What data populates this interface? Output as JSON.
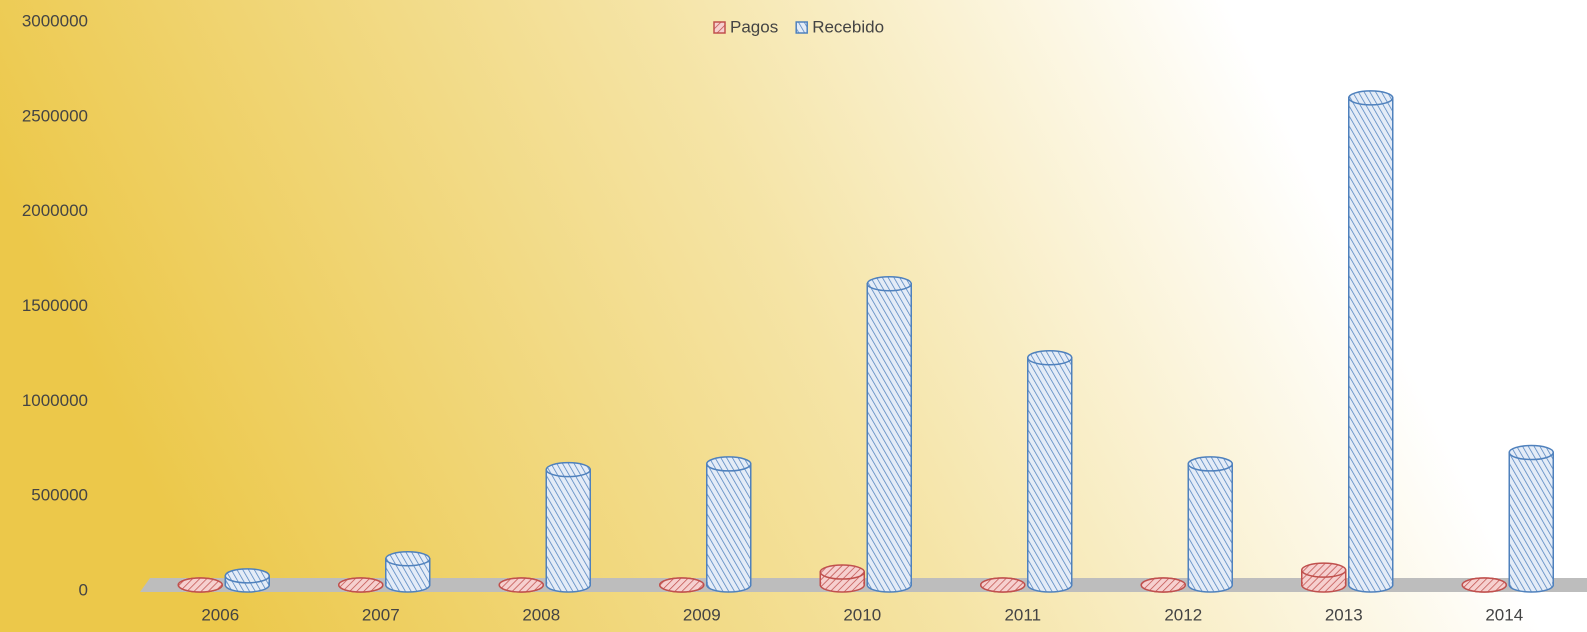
{
  "chart_data": {
    "type": "bar",
    "categories": [
      "2006",
      "2007",
      "2008",
      "2009",
      "2010",
      "2011",
      "2012",
      "2013",
      "2014"
    ],
    "series": [
      {
        "name": "Pagos",
        "color": "#c0504d",
        "values": [
          15000,
          12000,
          20000,
          12000,
          100000,
          15000,
          15000,
          110000,
          20000
        ]
      },
      {
        "name": "Recebido",
        "color": "#4f81bd",
        "values": [
          80000,
          170000,
          640000,
          670000,
          1620000,
          1230000,
          670000,
          2600000,
          730000
        ]
      }
    ],
    "ylim": [
      0,
      3000000
    ],
    "yticks": [
      0,
      500000,
      1000000,
      1500000,
      2000000,
      2500000,
      3000000
    ],
    "legend": "top"
  }
}
